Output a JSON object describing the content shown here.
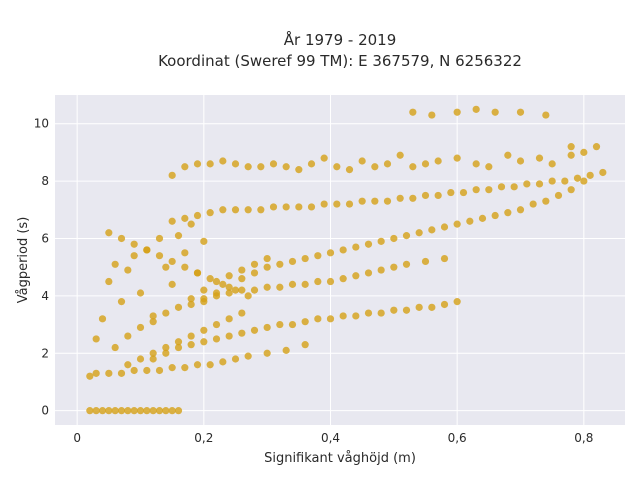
{
  "chart_data": {
    "type": "scatter",
    "title": [
      "År 1979 - 2019",
      "Koordinat (Sweref 99 TM): E 367579, N 6256322"
    ],
    "xlabel": "Signifikant våghöjd (m)",
    "ylabel": "Vågperiod (s)",
    "xlim": [
      -0.035,
      0.865
    ],
    "ylim": [
      -0.5,
      11
    ],
    "x_ticks": [
      0,
      0.2,
      0.4,
      0.6,
      0.8
    ],
    "x_tick_labels": [
      "0",
      "0,2",
      "0,4",
      "0,6",
      "0,8"
    ],
    "y_ticks": [
      0,
      2,
      4,
      6,
      8,
      10
    ],
    "y_tick_labels": [
      "0",
      "2",
      "4",
      "6",
      "8",
      "10"
    ],
    "grid": true,
    "marker_color": "#D4A017",
    "plot_background": "#E8E8F0",
    "series": [
      {
        "x": [
          0.02,
          0.03,
          0.04,
          0.05,
          0.06,
          0.07,
          0.08,
          0.09,
          0.1,
          0.11,
          0.12,
          0.13,
          0.14,
          0.15,
          0.16,
          0.02,
          0.03,
          0.05,
          0.07,
          0.09,
          0.11,
          0.13,
          0.15,
          0.17,
          0.19,
          0.21,
          0.23,
          0.25,
          0.27,
          0.3,
          0.33,
          0.36,
          0.03,
          0.04,
          0.05,
          0.06,
          0.07,
          0.08,
          0.09,
          0.1,
          0.11,
          0.12,
          0.13,
          0.14,
          0.15,
          0.16,
          0.17,
          0.18,
          0.19,
          0.2,
          0.06,
          0.08,
          0.1,
          0.12,
          0.14,
          0.16,
          0.18,
          0.2,
          0.22,
          0.24,
          0.26,
          0.28,
          0.3,
          0.15,
          0.17,
          0.19,
          0.21,
          0.23,
          0.25,
          0.27,
          0.29,
          0.31,
          0.33,
          0.35,
          0.37,
          0.39,
          0.41,
          0.43,
          0.45,
          0.47,
          0.49,
          0.51,
          0.53,
          0.55,
          0.57,
          0.59,
          0.61,
          0.63,
          0.65,
          0.67,
          0.69,
          0.71,
          0.73,
          0.75,
          0.77,
          0.79,
          0.81,
          0.83,
          0.2,
          0.22,
          0.24,
          0.26,
          0.28,
          0.3,
          0.32,
          0.34,
          0.36,
          0.38,
          0.4,
          0.42,
          0.44,
          0.46,
          0.48,
          0.5,
          0.52,
          0.54,
          0.56,
          0.58,
          0.6,
          0.62,
          0.64,
          0.66,
          0.68,
          0.7,
          0.72,
          0.74,
          0.76,
          0.78,
          0.8,
          0.12,
          0.14,
          0.16,
          0.18,
          0.2,
          0.22,
          0.24,
          0.26,
          0.28,
          0.3,
          0.32,
          0.34,
          0.36,
          0.38,
          0.4,
          0.42,
          0.44,
          0.46,
          0.48,
          0.5,
          0.52,
          0.54,
          0.56,
          0.58,
          0.6,
          0.18,
          0.2,
          0.22,
          0.24,
          0.26,
          0.28,
          0.3,
          0.32,
          0.34,
          0.36,
          0.38,
          0.4,
          0.42,
          0.44,
          0.46,
          0.48,
          0.5,
          0.52,
          0.55,
          0.58,
          0.15,
          0.17,
          0.19,
          0.21,
          0.23,
          0.25,
          0.27,
          0.29,
          0.31,
          0.33,
          0.35,
          0.37,
          0.39,
          0.41,
          0.43,
          0.45,
          0.47,
          0.49,
          0.51,
          0.53,
          0.55,
          0.57,
          0.6,
          0.63,
          0.65,
          0.68,
          0.7,
          0.73,
          0.75,
          0.78,
          0.8,
          0.82,
          0.05,
          0.07,
          0.09,
          0.11,
          0.13,
          0.15,
          0.17,
          0.19,
          0.21,
          0.23,
          0.25,
          0.27,
          0.08,
          0.1,
          0.12,
          0.14,
          0.16,
          0.18,
          0.2,
          0.22,
          0.24,
          0.26,
          0.53,
          0.56,
          0.6,
          0.63,
          0.66,
          0.7,
          0.74,
          0.78
        ],
        "y": [
          0,
          0,
          0,
          0,
          0,
          0,
          0,
          0,
          0,
          0,
          0,
          0,
          0,
          0,
          0,
          1.2,
          1.3,
          1.3,
          1.3,
          1.4,
          1.4,
          1.4,
          1.5,
          1.5,
          1.6,
          1.6,
          1.7,
          1.8,
          1.9,
          2.0,
          2.1,
          2.3,
          2.5,
          3.2,
          4.5,
          5.1,
          3.8,
          4.9,
          5.4,
          4.1,
          5.6,
          3.3,
          6.0,
          5.0,
          4.4,
          6.1,
          5.5,
          6.5,
          4.8,
          5.9,
          2.2,
          2.6,
          2.9,
          3.1,
          3.4,
          3.6,
          3.9,
          4.2,
          4.5,
          4.7,
          4.9,
          5.1,
          5.3,
          6.6,
          6.7,
          6.8,
          6.9,
          7.0,
          7.0,
          7.0,
          7.0,
          7.1,
          7.1,
          7.1,
          7.1,
          7.2,
          7.2,
          7.2,
          7.3,
          7.3,
          7.3,
          7.4,
          7.4,
          7.5,
          7.5,
          7.6,
          7.6,
          7.7,
          7.7,
          7.8,
          7.8,
          7.9,
          7.9,
          8.0,
          8.0,
          8.1,
          8.2,
          8.3,
          3.8,
          4.1,
          4.3,
          4.6,
          4.8,
          5.0,
          5.1,
          5.2,
          5.3,
          5.4,
          5.5,
          5.6,
          5.7,
          5.8,
          5.9,
          6.0,
          6.1,
          6.2,
          6.3,
          6.4,
          6.5,
          6.6,
          6.7,
          6.8,
          6.9,
          7.0,
          7.2,
          7.3,
          7.5,
          7.7,
          8.0,
          1.8,
          2.0,
          2.2,
          2.3,
          2.4,
          2.5,
          2.6,
          2.7,
          2.8,
          2.9,
          3.0,
          3.0,
          3.1,
          3.2,
          3.2,
          3.3,
          3.3,
          3.4,
          3.4,
          3.5,
          3.5,
          3.6,
          3.6,
          3.7,
          3.8,
          3.7,
          3.9,
          4.0,
          4.1,
          4.2,
          4.2,
          4.3,
          4.3,
          4.4,
          4.4,
          4.5,
          4.5,
          4.6,
          4.7,
          4.8,
          4.9,
          5.0,
          5.1,
          5.2,
          5.3,
          8.2,
          8.5,
          8.6,
          8.6,
          8.7,
          8.6,
          8.5,
          8.5,
          8.6,
          8.5,
          8.4,
          8.6,
          8.8,
          8.5,
          8.4,
          8.7,
          8.5,
          8.6,
          8.9,
          8.5,
          8.6,
          8.7,
          8.8,
          8.6,
          8.5,
          8.9,
          8.7,
          8.8,
          8.6,
          8.9,
          9.0,
          9.2,
          6.2,
          6.0,
          5.8,
          5.6,
          5.4,
          5.2,
          5.0,
          4.8,
          4.6,
          4.4,
          4.2,
          4.0,
          1.6,
          1.8,
          2.0,
          2.2,
          2.4,
          2.6,
          2.8,
          3.0,
          3.2,
          3.4,
          10.4,
          10.3,
          10.4,
          10.5,
          10.4,
          10.4,
          10.3,
          9.2
        ]
      }
    ]
  }
}
